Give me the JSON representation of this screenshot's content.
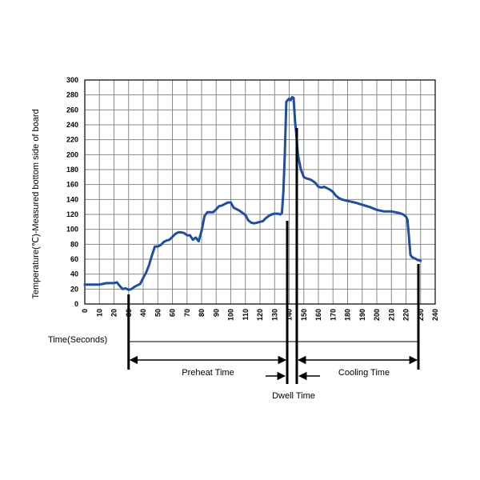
{
  "chart_data": {
    "type": "line",
    "ylabel": "Temperature(℃)-Measured bottom side of board",
    "xlabel": "Time(Seconds)",
    "xlim": [
      0,
      240
    ],
    "ylim": [
      0,
      300
    ],
    "x_ticks": [
      0,
      10,
      20,
      30,
      40,
      50,
      60,
      70,
      80,
      90,
      100,
      110,
      120,
      130,
      140,
      150,
      160,
      170,
      180,
      190,
      200,
      210,
      220,
      230,
      240
    ],
    "y_ticks": [
      0,
      20,
      40,
      60,
      80,
      100,
      120,
      140,
      160,
      180,
      200,
      220,
      240,
      260,
      280,
      300
    ],
    "grid": true,
    "color": "#1f4e9c",
    "series": [
      {
        "x": [
          0,
          5,
          10,
          15,
          20,
          22,
          24,
          26,
          28,
          30,
          32,
          34,
          36,
          38,
          40,
          42,
          44,
          46,
          48,
          50,
          52,
          54,
          56,
          58,
          60,
          62,
          64,
          66,
          68,
          70,
          72,
          74,
          76,
          78,
          80,
          82,
          84,
          86,
          88,
          90,
          92,
          94,
          96,
          98,
          100,
          102,
          104,
          106,
          108,
          110,
          112,
          114,
          116,
          118,
          120,
          122,
          124,
          126,
          128,
          130,
          132,
          134,
          135,
          136,
          137,
          138,
          139,
          140,
          141,
          142,
          143,
          144,
          145,
          146,
          148,
          150,
          152,
          154,
          156,
          158,
          160,
          162,
          164,
          166,
          168,
          170,
          172,
          174,
          176,
          178,
          180,
          185,
          190,
          195,
          200,
          205,
          210,
          215,
          218,
          220,
          221,
          222,
          223,
          224,
          226,
          228,
          230
        ],
        "y": [
          26,
          26,
          26,
          28,
          28,
          29,
          24,
          20,
          21,
          19,
          20,
          23,
          25,
          27,
          35,
          42,
          52,
          65,
          77,
          77,
          79,
          83,
          85,
          86,
          90,
          94,
          96,
          96,
          95,
          92,
          92,
          86,
          89,
          84,
          98,
          118,
          123,
          123,
          123,
          127,
          131,
          132,
          134,
          136,
          136,
          129,
          127,
          125,
          122,
          119,
          112,
          109,
          108,
          109,
          110,
          111,
          115,
          118,
          120,
          121,
          121,
          120,
          122,
          150,
          200,
          271,
          273,
          275,
          273,
          277,
          276,
          245,
          225,
          200,
          180,
          170,
          168,
          167,
          165,
          162,
          157,
          156,
          157,
          155,
          153,
          150,
          145,
          142,
          140,
          139,
          138,
          136,
          133,
          130,
          126,
          124,
          124,
          122,
          120,
          117,
          113,
          90,
          66,
          63,
          61,
          59,
          58
        ]
      }
    ],
    "annotations": {
      "preheat_label": "Preheat Time",
      "dwell_label": "Dwell Time",
      "cooling_label": "Cooling Time"
    }
  }
}
